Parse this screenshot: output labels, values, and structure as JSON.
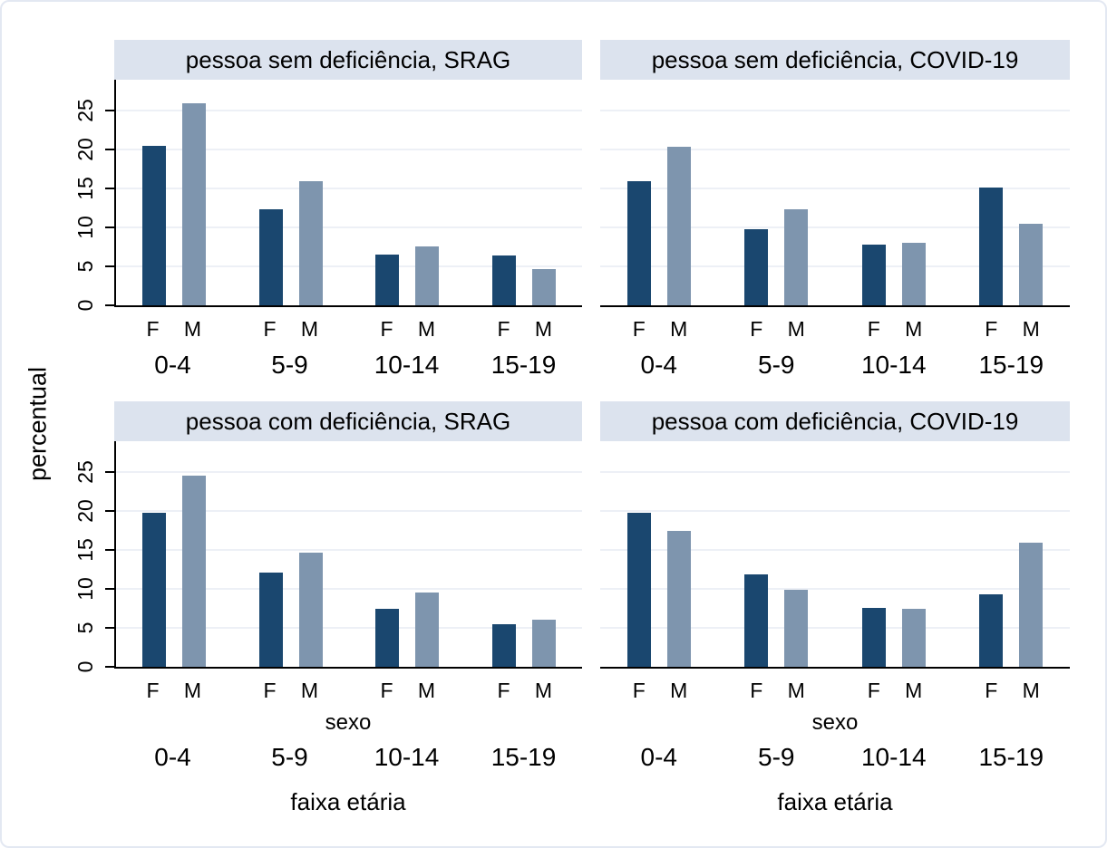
{
  "axes": {
    "y_title": "percentual",
    "x_title_inner": "sexo",
    "x_title_outer": "faixa etária"
  },
  "colors": {
    "bar_f": "#1a476f",
    "bar_m": "#7e95ae",
    "strip_bg": "#dce3ee",
    "grid_line": "#edf0f6",
    "axis": "#000000",
    "figure_border": "#e3e8f2"
  },
  "chart_data": {
    "type": "bar",
    "layout": "2x2 panels, grouped bars, gridlines on, no legend",
    "categories": [
      "0-4",
      "5-9",
      "10-14",
      "15-19"
    ],
    "sex_labels": [
      "F",
      "M"
    ],
    "ylabel": "percentual",
    "xlabel_inner": "sexo",
    "xlabel_outer": "faixa etária",
    "y_ticks": [
      0,
      5,
      10,
      15,
      20,
      25
    ],
    "ylim": [
      0,
      29
    ],
    "panels": [
      {
        "title": "pessoa sem deficiência, SRAG",
        "series": [
          {
            "name": "F",
            "values": [
              20.5,
              12.4,
              6.5,
              6.4
            ]
          },
          {
            "name": "M",
            "values": [
              26.0,
              16.0,
              7.6,
              4.7
            ]
          }
        ]
      },
      {
        "title": "pessoa sem deficiência, COVID-19",
        "series": [
          {
            "name": "F",
            "values": [
              16.0,
              9.8,
              7.8,
              15.1
            ]
          },
          {
            "name": "M",
            "values": [
              20.4,
              12.4,
              8.0,
              10.5
            ]
          }
        ]
      },
      {
        "title": "pessoa com deficiência, SRAG",
        "series": [
          {
            "name": "F",
            "values": [
              19.8,
              12.1,
              7.5,
              5.5
            ]
          },
          {
            "name": "M",
            "values": [
              24.6,
              14.7,
              9.5,
              6.1
            ]
          }
        ]
      },
      {
        "title": "pessoa com deficiência, COVID-19",
        "series": [
          {
            "name": "F",
            "values": [
              19.8,
              11.9,
              7.6,
              9.3
            ]
          },
          {
            "name": "M",
            "values": [
              17.5,
              9.9,
              7.5,
              16.0
            ]
          }
        ]
      }
    ]
  }
}
